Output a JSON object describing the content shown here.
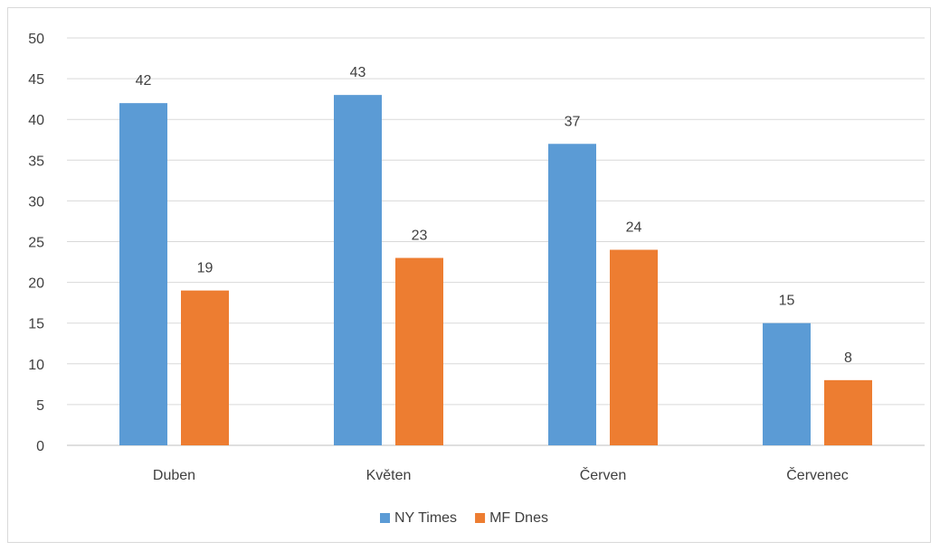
{
  "chart_data": {
    "type": "bar",
    "categories": [
      "Duben",
      "Květen",
      "Červen",
      "Červenec"
    ],
    "series": [
      {
        "name": "NY Times",
        "values": [
          42,
          43,
          37,
          15
        ],
        "color": "#5b9bd5"
      },
      {
        "name": "MF Dnes",
        "values": [
          19,
          23,
          24,
          8
        ],
        "color": "#ed7d31"
      }
    ],
    "title": "",
    "xlabel": "",
    "ylabel": "",
    "ylim": [
      0,
      50
    ],
    "yticks": [
      0,
      5,
      10,
      15,
      20,
      25,
      30,
      35,
      40,
      45,
      50
    ],
    "grid": true,
    "legend_position": "bottom",
    "data_labels": true
  }
}
